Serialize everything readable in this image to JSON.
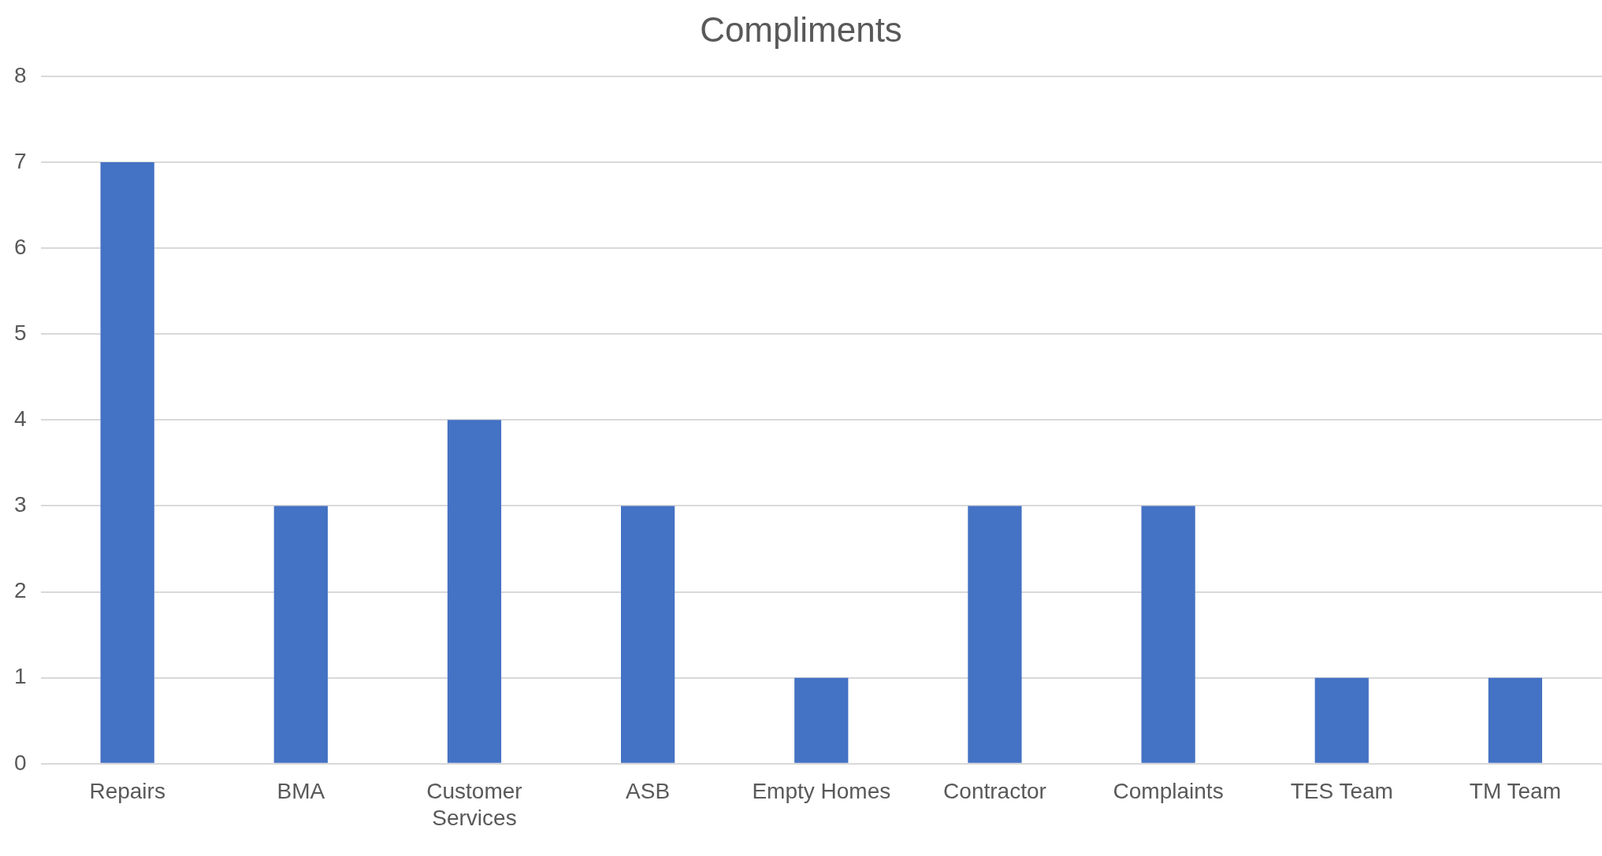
{
  "chart_data": {
    "type": "bar",
    "title": "Compliments",
    "categories": [
      "Repairs",
      "BMA",
      "Customer Services",
      "ASB",
      "Empty Homes",
      "Contractor",
      "Complaints",
      "TES Team",
      "TM Team"
    ],
    "values": [
      7,
      3,
      4,
      3,
      1,
      3,
      3,
      1,
      1
    ],
    "color": "#4472c4",
    "ylim": [
      0,
      8
    ],
    "yticks": [
      0,
      1,
      2,
      3,
      4,
      5,
      6,
      7,
      8
    ],
    "grid": "y",
    "legend": false
  }
}
